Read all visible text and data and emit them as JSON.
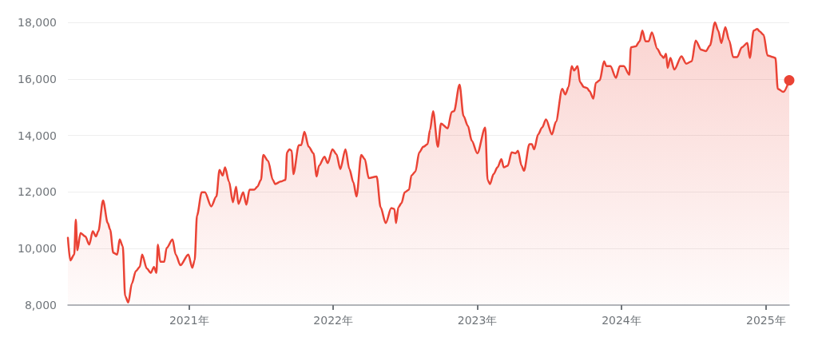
{
  "chart_data": {
    "type": "area",
    "x": [
      "2020-02-29",
      "2020-03-06",
      "2020-03-16",
      "2020-03-20",
      "2020-03-24",
      "2020-04-01",
      "2020-04-13",
      "2020-04-23",
      "2020-05-02",
      "2020-05-10",
      "2020-05-16",
      "2020-05-28",
      "2020-06-09",
      "2020-06-15",
      "2020-06-23",
      "2020-07-03",
      "2020-07-09",
      "2020-07-17",
      "2020-07-23",
      "2020-07-31",
      "2020-08-09",
      "2020-08-19",
      "2020-08-29",
      "2020-09-04",
      "2020-09-16",
      "2020-09-26",
      "2020-10-04",
      "2020-10-10",
      "2020-10-14",
      "2020-10-20",
      "2020-10-30",
      "2020-11-05",
      "2020-11-20",
      "2020-11-28",
      "2020-12-10",
      "2020-12-30",
      "2021-01-09",
      "2021-01-15",
      "2021-01-21",
      "2021-02-02",
      "2021-02-10",
      "2021-02-26",
      "2021-03-11",
      "2021-03-19",
      "2021-03-27",
      "2021-04-02",
      "2021-04-12",
      "2021-04-22",
      "2021-04-30",
      "2021-05-06",
      "2021-05-18",
      "2021-05-26",
      "2021-06-03",
      "2021-06-15",
      "2021-06-23",
      "2021-07-02",
      "2021-07-08",
      "2021-07-20",
      "2021-08-01",
      "2021-08-07",
      "2021-08-21",
      "2021-09-02",
      "2021-09-06",
      "2021-09-12",
      "2021-09-18",
      "2021-09-22",
      "2021-10-06",
      "2021-10-12",
      "2021-10-20",
      "2021-10-31",
      "2021-11-12",
      "2021-11-20",
      "2021-11-26",
      "2021-12-10",
      "2021-12-18",
      "2021-12-30",
      "2022-01-09",
      "2022-01-19",
      "2022-02-01",
      "2022-02-11",
      "2022-02-21",
      "2022-03-01",
      "2022-03-13",
      "2022-03-22",
      "2022-04-01",
      "2022-04-21",
      "2022-05-01",
      "2022-05-14",
      "2022-05-28",
      "2022-06-05",
      "2022-06-09",
      "2022-06-15",
      "2022-06-23",
      "2022-07-01",
      "2022-07-12",
      "2022-07-18",
      "2022-07-28",
      "2022-08-07",
      "2022-08-17",
      "2022-08-28",
      "2022-09-03",
      "2022-09-11",
      "2022-09-23",
      "2022-10-01",
      "2022-10-18",
      "2022-10-28",
      "2022-11-03",
      "2022-11-17",
      "2022-11-27",
      "2022-12-08",
      "2022-12-18",
      "2023-01-01",
      "2023-01-21",
      "2023-01-27",
      "2023-02-02",
      "2023-02-11",
      "2023-02-21",
      "2023-03-03",
      "2023-03-09",
      "2023-03-19",
      "2023-03-29",
      "2023-04-08",
      "2023-04-14",
      "2023-04-23",
      "2023-04-29",
      "2023-05-13",
      "2023-05-19",
      "2023-05-25",
      "2023-06-04",
      "2023-06-14",
      "2023-06-24",
      "2023-07-09",
      "2023-07-19",
      "2023-08-04",
      "2023-08-12",
      "2023-08-20",
      "2023-08-28",
      "2023-09-03",
      "2023-09-12",
      "2023-09-18",
      "2023-09-28",
      "2023-10-06",
      "2023-10-12",
      "2023-10-22",
      "2023-10-28",
      "2023-11-07",
      "2023-11-18",
      "2023-11-24",
      "2023-12-04",
      "2023-12-18",
      "2023-12-28",
      "2024-01-07",
      "2024-01-21",
      "2024-01-25",
      "2024-02-06",
      "2024-02-16",
      "2024-02-23",
      "2024-03-02",
      "2024-03-10",
      "2024-03-18",
      "2024-04-01",
      "2024-04-11",
      "2024-04-17",
      "2024-04-23",
      "2024-04-27",
      "2024-05-04",
      "2024-05-14",
      "2024-06-01",
      "2024-06-13",
      "2024-06-27",
      "2024-07-07",
      "2024-07-21",
      "2024-08-02",
      "2024-08-12",
      "2024-08-25",
      "2024-09-02",
      "2024-09-10",
      "2024-09-20",
      "2024-09-30",
      "2024-10-10",
      "2024-10-20",
      "2024-11-01",
      "2024-11-15",
      "2024-11-21",
      "2024-12-01",
      "2024-12-10",
      "2024-12-16",
      "2024-12-26",
      "2025-01-05",
      "2025-01-19",
      "2025-01-25",
      "2025-01-31",
      "2025-02-14",
      "2025-03-01"
    ],
    "series": [
      {
        "color": "#ea4335",
        "values": [
          10380,
          9580,
          9790,
          11020,
          9940,
          10550,
          10430,
          10140,
          10610,
          10430,
          10610,
          11700,
          10900,
          10670,
          9850,
          9790,
          10320,
          10080,
          8320,
          8090,
          8760,
          9200,
          9350,
          9790,
          9290,
          9140,
          9350,
          9140,
          10140,
          9530,
          9530,
          10020,
          10320,
          9790,
          9410,
          9790,
          9320,
          9580,
          11170,
          11990,
          11990,
          11490,
          11840,
          12780,
          12580,
          12870,
          12370,
          11640,
          12190,
          11580,
          11990,
          11550,
          12080,
          12080,
          12190,
          12430,
          13310,
          13100,
          12430,
          12280,
          12370,
          12430,
          13400,
          13510,
          13460,
          12630,
          13660,
          13660,
          14130,
          13600,
          13370,
          12550,
          12930,
          13250,
          13020,
          13510,
          13340,
          12810,
          13510,
          12810,
          12340,
          11840,
          13310,
          13160,
          12490,
          12550,
          11460,
          10900,
          11430,
          11400,
          10900,
          11460,
          11610,
          11990,
          12080,
          12580,
          12720,
          13400,
          13600,
          13690,
          14190,
          14860,
          13600,
          14420,
          14250,
          14830,
          14860,
          15800,
          14690,
          14340,
          13810,
          13370,
          14280,
          12430,
          12280,
          12630,
          12870,
          13160,
          12870,
          12930,
          13400,
          13370,
          13460,
          12930,
          12750,
          13690,
          13690,
          13510,
          14040,
          14280,
          14570,
          14040,
          14480,
          15650,
          15450,
          15710,
          16450,
          16300,
          16450,
          15890,
          15710,
          15680,
          15570,
          15300,
          15860,
          15950,
          16620,
          16450,
          16450,
          16040,
          16450,
          16450,
          16150,
          17120,
          17150,
          17330,
          17710,
          17330,
          17330,
          17650,
          17060,
          16830,
          16740,
          16890,
          16390,
          16740,
          16330,
          16800,
          16540,
          16620,
          17360,
          17030,
          16980,
          17180,
          18000,
          17710,
          17270,
          17830,
          17360,
          16770,
          16770,
          17120,
          17270,
          16740,
          17710,
          17770,
          17680,
          17560,
          16830,
          16770,
          16740,
          15650,
          15540,
          15950
        ]
      }
    ],
    "xlim": [
      "2020-02-29",
      "2025-03-01"
    ],
    "xticks": [
      {
        "value": "2021-01-01",
        "label": "2021年"
      },
      {
        "value": "2022-01-01",
        "label": "2022年"
      },
      {
        "value": "2023-01-01",
        "label": "2023年"
      },
      {
        "value": "2024-01-01",
        "label": "2024年"
      },
      {
        "value": "2025-01-01",
        "label": "2025年"
      }
    ],
    "ylim": [
      8000,
      18000
    ],
    "yticks": [
      {
        "value": 8000,
        "label": "8,000"
      },
      {
        "value": 10000,
        "label": "10,000"
      },
      {
        "value": 12000,
        "label": "12,000"
      },
      {
        "value": 14000,
        "label": "14,000"
      },
      {
        "value": 16000,
        "label": "16,000"
      },
      {
        "value": 18000,
        "label": "18,000"
      }
    ],
    "grid": "y",
    "marker": "none",
    "line_style": "solid"
  }
}
